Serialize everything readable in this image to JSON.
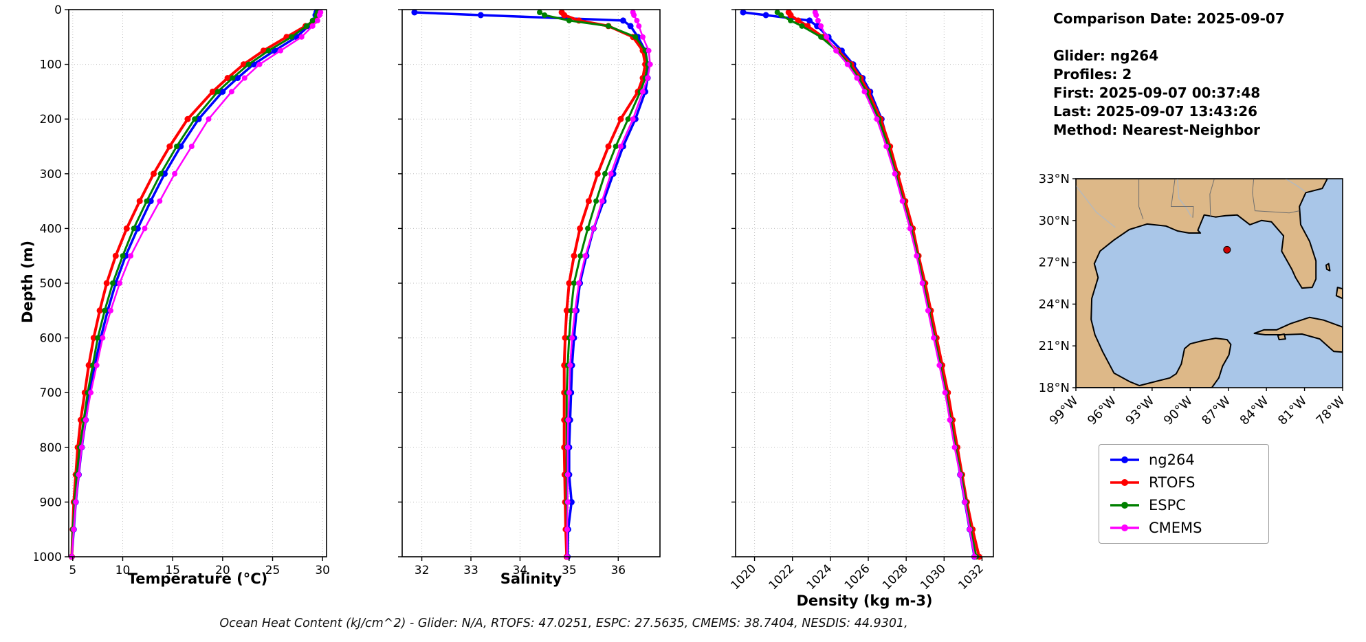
{
  "info_panel": {
    "lines": [
      "Comparison Date: 2025-09-07",
      "",
      "Glider: ng264",
      "Profiles: 2",
      "First: 2025-09-07 00:37:48",
      "Last: 2025-09-07 13:43:26",
      "Method: Nearest-Neighbor"
    ]
  },
  "caption": "Ocean Heat Content (kJ/cm^2) - Glider: N/A,  RTOFS: 47.0251,  ESPC: 27.5635,  CMEMS: 38.7404,  NESDIS: 44.9301,",
  "legend": {
    "items": [
      {
        "label": "ng264",
        "color": "#0000ff"
      },
      {
        "label": "RTOFS",
        "color": "#ff0000"
      },
      {
        "label": "ESPC",
        "color": "#008000"
      },
      {
        "label": "CMEMS",
        "color": "#ff00ff"
      }
    ]
  },
  "map": {
    "lat_labels": [
      "33°N",
      "30°N",
      "27°N",
      "24°N",
      "21°N",
      "18°N"
    ],
    "lon_labels": [
      "99°W",
      "96°W",
      "93°W",
      "90°W",
      "87°W",
      "84°W",
      "81°W",
      "78°W"
    ],
    "lat_ticks": [
      33,
      30,
      27,
      24,
      21,
      18
    ],
    "lon_ticks": [
      -99,
      -96,
      -93,
      -90,
      -87,
      -84,
      -81,
      -78
    ],
    "extent": {
      "lon": [
        -99,
        -78
      ],
      "lat": [
        18,
        33
      ]
    },
    "colors": {
      "land": "#ddb888",
      "water": "#a9c6e8",
      "coast": "#000000"
    },
    "marker": {
      "lon": -87.1,
      "lat": 27.9,
      "color": "#cc0000"
    },
    "land_polygons": [
      [
        [
          -99,
          33
        ],
        [
          -79.2,
          33
        ],
        [
          -79.6,
          32.3
        ],
        [
          -80.9,
          32.0
        ],
        [
          -81.4,
          31.0
        ],
        [
          -81.3,
          29.7
        ],
        [
          -80.6,
          28.5
        ],
        [
          -80.1,
          27.1
        ],
        [
          -80.1,
          25.8
        ],
        [
          -80.4,
          25.2
        ],
        [
          -81.2,
          25.15
        ],
        [
          -81.7,
          25.9
        ],
        [
          -82.0,
          26.5
        ],
        [
          -82.8,
          27.8
        ],
        [
          -82.65,
          28.9
        ],
        [
          -83.6,
          29.9
        ],
        [
          -84.4,
          30.0
        ],
        [
          -85.3,
          29.7
        ],
        [
          -86.3,
          30.4
        ],
        [
          -87.2,
          30.35
        ],
        [
          -88.0,
          30.25
        ],
        [
          -88.9,
          30.4
        ],
        [
          -89.4,
          29.3
        ],
        [
          -89.2,
          29.1
        ],
        [
          -90.1,
          29.1
        ],
        [
          -91.0,
          29.25
        ],
        [
          -91.9,
          29.6
        ],
        [
          -93.4,
          29.75
        ],
        [
          -94.8,
          29.35
        ],
        [
          -96.0,
          28.6
        ],
        [
          -97.1,
          27.8
        ],
        [
          -97.55,
          26.9
        ],
        [
          -97.25,
          25.9
        ],
        [
          -97.75,
          24.4
        ],
        [
          -97.8,
          22.9
        ],
        [
          -97.5,
          21.8
        ],
        [
          -96.9,
          20.6
        ],
        [
          -96.0,
          19.05
        ],
        [
          -94.8,
          18.45
        ],
        [
          -94.0,
          18.15
        ],
        [
          -92.7,
          18.45
        ],
        [
          -91.6,
          18.7
        ],
        [
          -91.1,
          19.0
        ],
        [
          -90.7,
          19.7
        ],
        [
          -90.45,
          20.8
        ],
        [
          -90.0,
          21.15
        ],
        [
          -88.9,
          21.4
        ],
        [
          -88.0,
          21.55
        ],
        [
          -87.1,
          21.45
        ],
        [
          -86.8,
          21.1
        ],
        [
          -86.95,
          20.35
        ],
        [
          -87.45,
          19.55
        ],
        [
          -87.75,
          18.7
        ],
        [
          -88.3,
          18.0
        ],
        [
          -99,
          18
        ]
      ],
      [
        [
          -84.95,
          21.9
        ],
        [
          -84.2,
          22.15
        ],
        [
          -83.2,
          22.15
        ],
        [
          -82.1,
          22.6
        ],
        [
          -80.6,
          23.05
        ],
        [
          -79.5,
          22.85
        ],
        [
          -78.0,
          22.35
        ],
        [
          -78.0,
          20.55
        ],
        [
          -78.7,
          20.6
        ],
        [
          -79.8,
          21.5
        ],
        [
          -81.2,
          21.85
        ],
        [
          -82.7,
          21.8
        ],
        [
          -84.1,
          21.8
        ]
      ],
      [
        [
          -83.1,
          21.75
        ],
        [
          -82.6,
          21.85
        ],
        [
          -82.5,
          21.5
        ],
        [
          -83.0,
          21.45
        ]
      ],
      [
        [
          -79.3,
          26.8
        ],
        [
          -79.1,
          26.9
        ],
        [
          -79.0,
          26.4
        ],
        [
          -79.25,
          26.5
        ]
      ],
      [
        [
          -78.4,
          25.2
        ],
        [
          -78.0,
          25.1
        ],
        [
          -78.0,
          24.4
        ],
        [
          -78.5,
          24.6
        ]
      ]
    ],
    "border_lines": [
      [
        [
          -94.04,
          33
        ],
        [
          -94.04,
          31.0
        ],
        [
          -93.7,
          30.1
        ]
      ],
      [
        [
          -91.2,
          33
        ],
        [
          -91.5,
          31.0
        ],
        [
          -89.75,
          31.0
        ],
        [
          -89.8,
          30.2
        ]
      ],
      [
        [
          -88.1,
          33
        ],
        [
          -88.45,
          31.9
        ],
        [
          -88.4,
          30.3
        ]
      ],
      [
        [
          -85.0,
          33
        ],
        [
          -85.1,
          32.0
        ],
        [
          -84.9,
          30.7
        ],
        [
          -82.2,
          30.55
        ],
        [
          -81.4,
          30.7
        ]
      ]
    ],
    "river_lines": [
      [
        [
          -99,
          32.5
        ],
        [
          -97.4,
          30.6
        ],
        [
          -95.9,
          29.5
        ]
      ],
      [
        [
          -91.0,
          33
        ],
        [
          -90.9,
          31.6
        ],
        [
          -90.3,
          30.9
        ],
        [
          -89.9,
          30.25
        ]
      ],
      [
        [
          -82.5,
          33
        ],
        [
          -81.6,
          32.5
        ],
        [
          -80.9,
          32.05
        ]
      ]
    ]
  },
  "chart_data": {
    "type": "line",
    "subtype": "vertical-profile",
    "ylabel": "Depth (m)",
    "ylim": [
      0,
      1000
    ],
    "yticks": [
      0,
      100,
      200,
      300,
      400,
      500,
      600,
      700,
      800,
      900,
      1000
    ],
    "depth": [
      5,
      10,
      20,
      30,
      50,
      75,
      100,
      125,
      150,
      200,
      250,
      300,
      350,
      400,
      450,
      500,
      550,
      600,
      650,
      700,
      750,
      800,
      850,
      900,
      950,
      1000
    ],
    "series_meta": [
      {
        "name": "ng264",
        "color": "#0000ff",
        "lw": 3.5,
        "r": 4.5
      },
      {
        "name": "RTOFS",
        "color": "#ff0000",
        "lw": 4.0,
        "r": 4.5
      },
      {
        "name": "ESPC",
        "color": "#008000",
        "lw": 3.0,
        "r": 4.0
      },
      {
        "name": "CMEMS",
        "color": "#ff00ff",
        "lw": 2.5,
        "r": 4.0
      }
    ],
    "panels": [
      {
        "name": "temperature",
        "xlabel": "Temperature (°C)",
        "xlim": [
          4.6,
          30.4
        ],
        "xticks": [
          5,
          10,
          15,
          20,
          25,
          30
        ],
        "rotate_xticks": false,
        "series": {
          "ng264": [
            29.4,
            29.3,
            29.1,
            28.6,
            27.4,
            25.2,
            23.1,
            21.5,
            20.0,
            17.6,
            15.8,
            14.2,
            12.8,
            11.5,
            10.3,
            9.3,
            8.5,
            7.8,
            7.2,
            6.7,
            6.3,
            5.9,
            5.6,
            5.3,
            5.1,
            4.9
          ],
          "RTOFS": [
            29.7,
            29.6,
            29.3,
            28.3,
            26.4,
            24.1,
            22.1,
            20.5,
            19.0,
            16.5,
            14.7,
            13.1,
            11.7,
            10.4,
            9.3,
            8.4,
            7.7,
            7.1,
            6.6,
            6.2,
            5.8,
            5.5,
            5.3,
            5.1,
            5.0,
            4.9
          ],
          "ESPC": [
            29.5,
            29.4,
            29.0,
            28.4,
            26.9,
            24.6,
            22.6,
            21.0,
            19.5,
            17.2,
            15.4,
            13.8,
            12.4,
            11.1,
            10.0,
            9.0,
            8.2,
            7.5,
            7.0,
            6.5,
            6.1,
            5.7,
            5.4,
            5.2,
            5.0,
            4.9
          ],
          "CMEMS": [
            29.8,
            29.7,
            29.5,
            29.0,
            27.9,
            25.8,
            23.7,
            22.2,
            20.9,
            18.6,
            16.9,
            15.2,
            13.7,
            12.2,
            10.8,
            9.7,
            8.8,
            8.0,
            7.4,
            6.8,
            6.3,
            5.9,
            5.6,
            5.3,
            5.1,
            4.9
          ]
        }
      },
      {
        "name": "salinity",
        "xlabel": "Salinity",
        "xlim": [
          31.6,
          36.85
        ],
        "xticks": [
          32,
          33,
          34,
          35,
          36
        ],
        "rotate_xticks": false,
        "series": {
          "ng264": [
            31.85,
            33.2,
            36.1,
            36.25,
            36.4,
            36.55,
            36.6,
            36.6,
            36.55,
            36.35,
            36.1,
            35.9,
            35.7,
            35.5,
            35.35,
            35.22,
            35.15,
            35.1,
            35.06,
            35.04,
            35.02,
            35.0,
            35.0,
            35.05,
            34.98,
            34.97
          ],
          "RTOFS": [
            34.85,
            34.9,
            35.2,
            35.8,
            36.3,
            36.5,
            36.55,
            36.5,
            36.4,
            36.05,
            35.8,
            35.58,
            35.4,
            35.22,
            35.1,
            35.0,
            34.95,
            34.92,
            34.9,
            34.9,
            34.9,
            34.9,
            34.91,
            34.92,
            34.93,
            34.95
          ],
          "ESPC": [
            34.4,
            34.5,
            35.0,
            35.8,
            36.35,
            36.55,
            36.6,
            36.55,
            36.45,
            36.2,
            35.95,
            35.73,
            35.55,
            35.38,
            35.23,
            35.1,
            35.04,
            35.0,
            34.97,
            34.95,
            34.95,
            34.95,
            34.95,
            34.95,
            34.96,
            34.96
          ],
          "CMEMS": [
            36.3,
            36.32,
            36.38,
            36.42,
            36.5,
            36.62,
            36.65,
            36.6,
            36.5,
            36.3,
            36.05,
            35.85,
            35.67,
            35.5,
            35.33,
            35.2,
            35.12,
            35.06,
            35.02,
            35.0,
            34.98,
            34.97,
            34.97,
            34.97,
            34.96,
            34.96
          ]
        }
      },
      {
        "name": "density",
        "xlabel": "Density (kg m-3)",
        "xlim": [
          1019.0,
          1032.6
        ],
        "xticks": [
          1020,
          1022,
          1024,
          1026,
          1028,
          1030,
          1032
        ],
        "rotate_xticks": true,
        "series": {
          "ng264": [
            1019.4,
            1020.6,
            1022.9,
            1023.3,
            1023.9,
            1024.6,
            1025.2,
            1025.7,
            1026.1,
            1026.7,
            1027.1,
            1027.5,
            1027.9,
            1028.3,
            1028.6,
            1028.95,
            1029.25,
            1029.55,
            1029.85,
            1030.1,
            1030.35,
            1030.6,
            1030.85,
            1031.1,
            1031.35,
            1031.6
          ],
          "RTOFS": [
            1021.8,
            1021.9,
            1022.3,
            1022.8,
            1023.6,
            1024.4,
            1025.1,
            1025.6,
            1026.0,
            1026.65,
            1027.15,
            1027.55,
            1027.95,
            1028.35,
            1028.65,
            1029.0,
            1029.3,
            1029.6,
            1029.9,
            1030.2,
            1030.45,
            1030.7,
            1030.95,
            1031.2,
            1031.5,
            1031.85
          ],
          "ESPC": [
            1021.2,
            1021.4,
            1021.9,
            1022.5,
            1023.5,
            1024.35,
            1025.0,
            1025.5,
            1025.9,
            1026.55,
            1027.05,
            1027.45,
            1027.85,
            1028.25,
            1028.6,
            1028.9,
            1029.2,
            1029.5,
            1029.8,
            1030.1,
            1030.35,
            1030.6,
            1030.9,
            1031.15,
            1031.4,
            1031.7
          ],
          "CMEMS": [
            1023.2,
            1023.25,
            1023.35,
            1023.5,
            1023.8,
            1024.3,
            1024.9,
            1025.4,
            1025.8,
            1026.45,
            1026.95,
            1027.4,
            1027.8,
            1028.2,
            1028.55,
            1028.85,
            1029.15,
            1029.45,
            1029.75,
            1030.05,
            1030.3,
            1030.55,
            1030.85,
            1031.1,
            1031.35,
            1031.6
          ]
        }
      }
    ]
  }
}
